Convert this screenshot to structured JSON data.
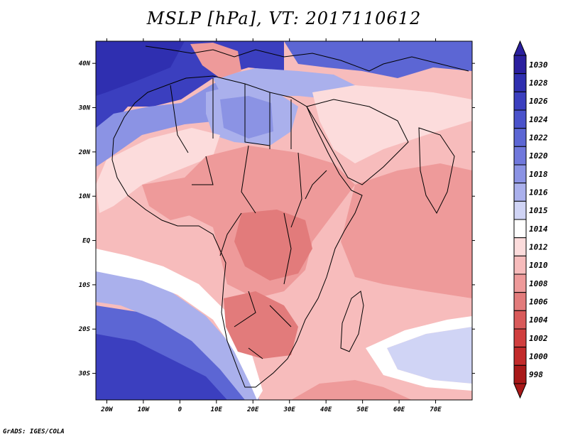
{
  "title": "MSLP [hPa], VT: 2017110612",
  "credit": "GrADS: IGES/COLA",
  "map": {
    "lon_range": [
      -23,
      80
    ],
    "lat_range": [
      -36,
      45
    ],
    "lon_ticks": [
      {
        "value": -20,
        "label": "20W"
      },
      {
        "value": -10,
        "label": "10W"
      },
      {
        "value": 0,
        "label": "0"
      },
      {
        "value": 10,
        "label": "10E"
      },
      {
        "value": 20,
        "label": "20E"
      },
      {
        "value": 30,
        "label": "30E"
      },
      {
        "value": 40,
        "label": "40E"
      },
      {
        "value": 50,
        "label": "50E"
      },
      {
        "value": 60,
        "label": "60E"
      },
      {
        "value": 70,
        "label": "70E"
      }
    ],
    "lat_ticks": [
      {
        "value": 40,
        "label": "40N"
      },
      {
        "value": 30,
        "label": "30N"
      },
      {
        "value": 20,
        "label": "20N"
      },
      {
        "value": 10,
        "label": "10N"
      },
      {
        "value": 0,
        "label": "EQ"
      },
      {
        "value": -10,
        "label": "10S"
      },
      {
        "value": -20,
        "label": "20S"
      },
      {
        "value": -30,
        "label": "30S"
      }
    ]
  },
  "colorbar": {
    "levels": [
      "1030",
      "1028",
      "1026",
      "1024",
      "1022",
      "1020",
      "1018",
      "1016",
      "1015",
      "1014",
      "1012",
      "1010",
      "1008",
      "1006",
      "1004",
      "1002",
      "1000",
      "998"
    ],
    "colors": [
      "#2a1f9e",
      "#2f2fb0",
      "#3b3fbf",
      "#4a52cb",
      "#5c66d4",
      "#7078dc",
      "#8b93e4",
      "#aab0ec",
      "#d0d4f5",
      "#ffffff",
      "#fcdcdc",
      "#f7bcbc",
      "#ee9a9a",
      "#e27b7b",
      "#d95a5a",
      "#d03e3e",
      "#c22a2a",
      "#a81818"
    ]
  },
  "regions": [
    {
      "name": "background-field",
      "color": "#f7bcbc"
    },
    {
      "name": "northwest-high",
      "color": "#3b3fbf"
    },
    {
      "name": "northwest-high-core",
      "color": "#2f2fb0"
    },
    {
      "name": "northwest-ridge",
      "color": "#8b93e4"
    },
    {
      "name": "mediterranean-ridge",
      "color": "#aab0ec"
    },
    {
      "name": "central-asia-high",
      "color": "#5c66d4"
    },
    {
      "name": "sahara-high",
      "color": "#aab0ec"
    },
    {
      "name": "sahara-high-inner",
      "color": "#8b93e4"
    },
    {
      "name": "italy-low",
      "color": "#ee9a9a"
    },
    {
      "name": "arabia-neutral",
      "color": "#fcdcdc"
    },
    {
      "name": "sahel-neutral",
      "color": "#fcdcdc"
    },
    {
      "name": "south-atlantic-high",
      "color": "#5c66d4"
    },
    {
      "name": "south-atlantic-high-core",
      "color": "#3b3fbf"
    },
    {
      "name": "south-atlantic-ridge",
      "color": "#aab0ec"
    },
    {
      "name": "southwest-rim",
      "color": "#ffffff"
    },
    {
      "name": "indian-ocean-high",
      "color": "#d0d4f5"
    },
    {
      "name": "indian-ocean-rim",
      "color": "#ffffff"
    },
    {
      "name": "southern-ocean-trough",
      "color": "#ee9a9a"
    },
    {
      "name": "africa-low",
      "color": "#ee9a9a"
    },
    {
      "name": "africa-low-core",
      "color": "#e27b7b"
    },
    {
      "name": "southern-africa-low",
      "color": "#e27b7b"
    },
    {
      "name": "west-africa-low",
      "color": "#ee9a9a"
    },
    {
      "name": "indian-ocean-low",
      "color": "#ee9a9a"
    }
  ]
}
